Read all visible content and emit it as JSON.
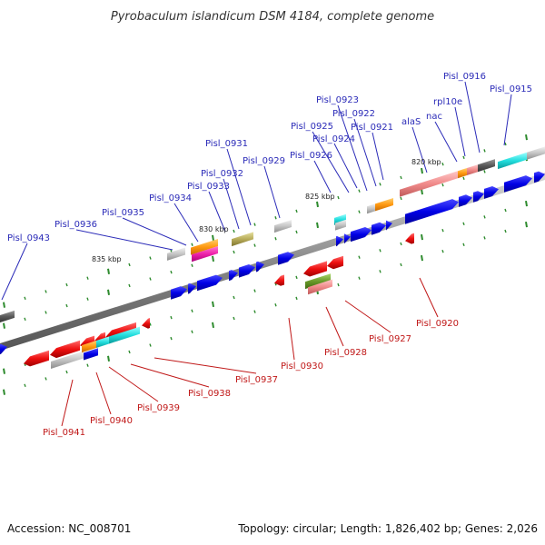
{
  "title": "Pyrobaculum islandicum DSM 4184, complete genome",
  "footer": {
    "accession": "Accession: NC_008701",
    "summary": "Topology: circular; Length: 1,826,402 bp; Genes: 2,026"
  },
  "kbp_ticks": [
    "835 kbp",
    "830 kbp",
    "825 kbp",
    "820 kbp"
  ],
  "labels_forward": [
    "Pisl_0943",
    "Pisl_0936",
    "Pisl_0935",
    "Pisl_0934",
    "Pisl_0933",
    "Pisl_0932",
    "Pisl_0931",
    "Pisl_0929",
    "Pisl_0926",
    "Pisl_0925",
    "Pisl_0924",
    "Pisl_0923",
    "Pisl_0922",
    "Pisl_0921",
    "alaS",
    "nac",
    "rpl10e",
    "Pisl_0916",
    "Pisl_0915"
  ],
  "labels_reverse": [
    "Pisl_0941",
    "Pisl_0940",
    "Pisl_0939",
    "Pisl_0938",
    "Pisl_0937",
    "Pisl_0930",
    "Pisl_0928",
    "Pisl_0927",
    "Pisl_0920"
  ],
  "colors": {
    "forward_gene": "#0a0ae0",
    "reverse_gene": "#e81010",
    "backbone": "#8a8a8a",
    "tick": "#2e8b2e",
    "label_forward": "#2b2bb8",
    "label_reverse": "#c01818"
  }
}
